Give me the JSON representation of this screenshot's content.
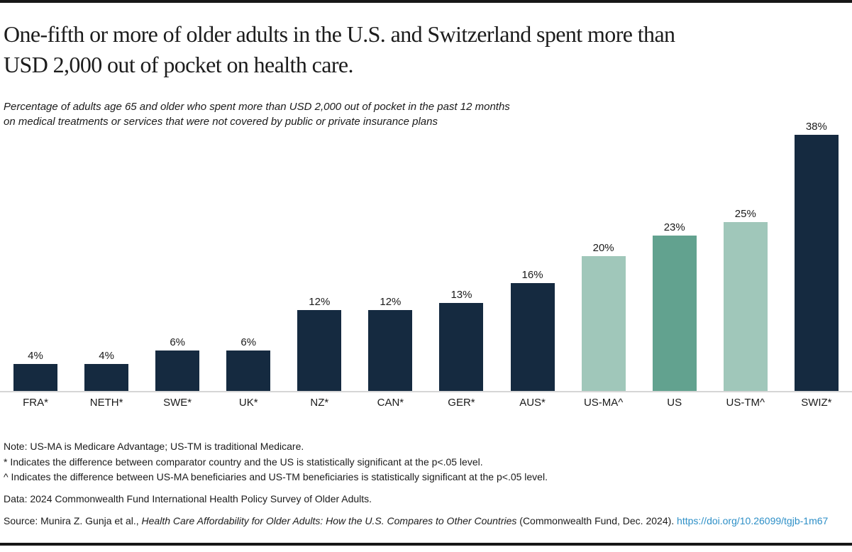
{
  "header": {
    "title_line1": "One-fifth or more of older adults in the U.S. and Switzerland spent more than",
    "title_line2": "USD 2,000 out of pocket on health care.",
    "subtitle_line1": "Percentage of adults age 65 and older who spent more than USD 2,000 out of pocket in the past 12 months",
    "subtitle_line2": "on medical treatments or services that were not covered by public or private insurance plans"
  },
  "chart_data": {
    "type": "bar",
    "title": "One-fifth or more of older adults in the U.S. and Switzerland spent more than USD 2,000 out of pocket on health care.",
    "subtitle": "Percentage of adults age 65 and older who spent more than USD 2,000 out of pocket in the past 12 months on medical treatments or services that were not covered by public or private insurance plans",
    "categories": [
      "FRA*",
      "NETH*",
      "SWE*",
      "UK*",
      "NZ*",
      "CAN*",
      "GER*",
      "AUS*",
      "US-MA^",
      "US",
      "US-TM^",
      "SWIZ*"
    ],
    "values": [
      4,
      4,
      6,
      6,
      12,
      12,
      13,
      16,
      20,
      23,
      25,
      38
    ],
    "value_labels": [
      "4%",
      "4%",
      "6%",
      "6%",
      "12%",
      "12%",
      "13%",
      "16%",
      "20%",
      "23%",
      "25%",
      "38%"
    ],
    "bar_colors": [
      "#152A40",
      "#152A40",
      "#152A40",
      "#152A40",
      "#152A40",
      "#152A40",
      "#152A40",
      "#152A40",
      "#A0C7BA",
      "#62A28F",
      "#A0C7BA",
      "#152A40"
    ],
    "ylim": [
      0,
      38
    ],
    "xlabel": "",
    "ylabel": "",
    "grid": false,
    "legend": "none",
    "colors": {
      "navy": "#152A40",
      "mint": "#A0C7BA",
      "teal": "#62A28F",
      "axis_line": "#D6D6D6",
      "top_rule": "#171717"
    }
  },
  "notes": {
    "line1": "Note: US-MA is Medicare Advantage; US-TM is traditional Medicare.",
    "line2": "* Indicates the difference between comparator country and the US is statistically significant at the p<.05 level.",
    "line3": "^ Indicates the difference between US-MA beneficiaries and US-TM beneficiaries is statistically significant at the p<.05 level."
  },
  "data_line": "Data: 2024 Commonwealth Fund International Health Policy Survey of Older Adults.",
  "source": {
    "prefix": "Source: Munira Z. Gunja et al., ",
    "italic_title": "Health Care Affordability for Older Adults: How the U.S. Compares to Other Countries",
    "suffix": " (Commonwealth Fund, Dec. 2024). ",
    "link_text": "https://doi.org/10.26099/tgjb-1m67",
    "link_color": "#2D8FC7"
  }
}
